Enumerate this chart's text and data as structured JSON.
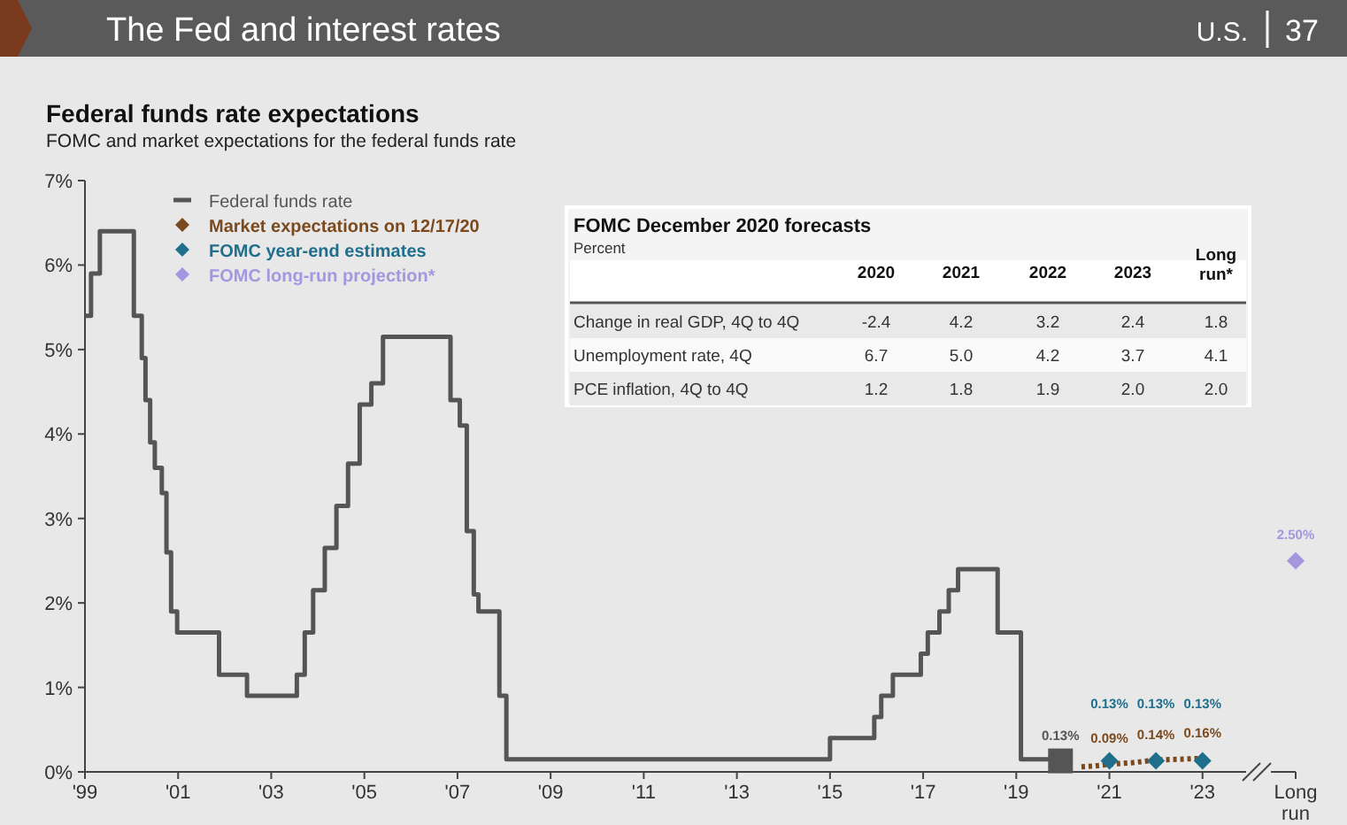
{
  "chart_data": {
    "type": "line",
    "title": "Federal funds rate expectations",
    "subtitle": "FOMC and market expectations for the federal funds rate",
    "annotations": [
      "The Fed and interest rates",
      "U.S.",
      "37",
      "FOMC December 2020 forecasts",
      "Percent",
      "2020",
      "2021",
      "2022",
      "2023",
      "Long run*",
      "Change in real GDP, 4Q to 4Q",
      "-2.4",
      "4.2",
      "3.2",
      "2.4",
      "1.8",
      "Unemployment rate, 4Q",
      "6.7",
      "5.0",
      "4.2",
      "3.7",
      "4.1",
      "PCE inflation, 4Q to 4Q",
      "1.2",
      "1.8",
      "1.9",
      "2.0",
      "2.0"
    ],
    "xlim": [
      1999,
      2025
    ],
    "xticks": [
      {
        "value": 1999,
        "label": "'99"
      },
      {
        "value": 2001,
        "label": "'01"
      },
      {
        "value": 2003,
        "label": "'03"
      },
      {
        "value": 2005,
        "label": "'05"
      },
      {
        "value": 2007,
        "label": "'07"
      },
      {
        "value": 2009,
        "label": "'09"
      },
      {
        "value": 2011,
        "label": "'11"
      },
      {
        "value": 2013,
        "label": "'13"
      },
      {
        "value": 2015,
        "label": "'15"
      },
      {
        "value": 2017,
        "label": "'17"
      },
      {
        "value": 2019,
        "label": "'19"
      },
      {
        "value": 2021,
        "label": "'21"
      },
      {
        "value": 2023,
        "label": "'23"
      },
      {
        "value": 2025,
        "label": "Long run"
      }
    ],
    "ylim": [
      0,
      7
    ],
    "yticks": [
      {
        "value": 0,
        "label": "0%"
      },
      {
        "value": 1,
        "label": "1%"
      },
      {
        "value": 2,
        "label": "2%"
      },
      {
        "value": 3,
        "label": "3%"
      },
      {
        "value": 4,
        "label": "4%"
      },
      {
        "value": 5,
        "label": "5%"
      },
      {
        "value": 6,
        "label": "6%"
      },
      {
        "value": 7,
        "label": "7%"
      }
    ],
    "grid": false,
    "legend": "top left",
    "series": [
      {
        "name": "Federal funds rate",
        "type": "step",
        "color": "#555555",
        "marker": "none",
        "line_style": "solid",
        "x": [
          1999,
          1999.13,
          1999.32,
          2000.05,
          2000.22,
          2000.3,
          2000.4,
          2000.5,
          2000.65,
          2000.75,
          2000.85,
          2000.98,
          2001.88,
          2002.48,
          2003.55,
          2003.72,
          2003.9,
          2004.15,
          2004.4,
          2004.65,
          2004.9,
          2005.15,
          2005.4,
          2006.85,
          2007.05,
          2007.2,
          2007.35,
          2007.45,
          2007.9,
          2008.05,
          2015,
          2015.95,
          2016.1,
          2016.35,
          2016.95,
          2017.1,
          2017.35,
          2017.55,
          2017.75,
          2018.6,
          2019.1,
          2019.8
        ],
        "values": [
          5.4,
          5.9,
          6.4,
          5.4,
          4.9,
          4.4,
          3.9,
          3.6,
          3.3,
          2.6,
          1.9,
          1.65,
          1.15,
          0.9,
          1.15,
          1.65,
          2.15,
          2.65,
          3.15,
          3.65,
          4.35,
          4.6,
          5.15,
          4.4,
          4.1,
          2.85,
          2.1,
          1.9,
          0.9,
          0.15,
          0.4,
          0.65,
          0.9,
          1.15,
          1.4,
          1.65,
          1.9,
          2.15,
          2.4,
          1.65,
          0.15,
          0.15
        ]
      },
      {
        "name": "Market expectations on 12/17/20",
        "type": "line",
        "color": "#7a4a1e",
        "marker": "none",
        "line_style": "dotted",
        "x": [
          2020.4,
          2020.7,
          2021,
          2021.5,
          2022,
          2022.5,
          2023
        ],
        "values": [
          0.06,
          0.07,
          0.09,
          0.11,
          0.14,
          0.15,
          0.16
        ],
        "value_labels": [
          null,
          null,
          "0.09%",
          null,
          "0.14%",
          null,
          "0.16%"
        ]
      },
      {
        "name": "FOMC year-end estimates",
        "type": "scatter",
        "color": "#1f6e8c",
        "marker": "diamond",
        "x": [
          2021,
          2022,
          2023
        ],
        "values": [
          0.13,
          0.13,
          0.13
        ],
        "value_labels": [
          "0.13%",
          "0.13%",
          "0.13%"
        ]
      },
      {
        "name": "FOMC long-run projection*",
        "type": "scatter",
        "color": "#a596e0",
        "marker": "diamond",
        "x": [
          2025
        ],
        "values": [
          2.5
        ],
        "value_labels": [
          "2.50%"
        ]
      },
      {
        "type": "scatter",
        "color": "#555555",
        "marker": "square",
        "x": [
          2019.95
        ],
        "values": [
          0.13
        ],
        "value_labels": [
          "0.13%"
        ]
      }
    ]
  }
}
